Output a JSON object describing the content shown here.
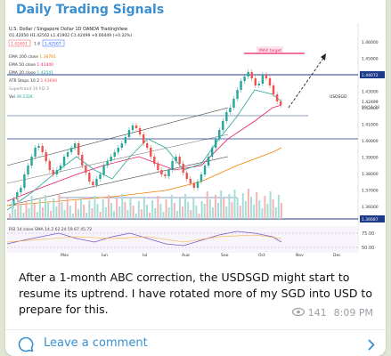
{
  "channel": {
    "title": "Daily Trading Signals"
  },
  "chart": {
    "symbol_line": "U.S. Dollar / Singapore Dollar  1D  OANDA  TradingView",
    "ohlc_line": "O1.42050 H1.42502 L1.41902 C1.42499 +0.00449 (+0.32%)",
    "bid": "1.42491",
    "spread": "1.6",
    "ask": "1.42507",
    "indicators": [
      {
        "label": "EMA 200 close",
        "value": "1.36781"
      },
      {
        "label": "EMA 50 close",
        "value": "1.41440"
      },
      {
        "label": "EMA 20 close",
        "value": "1.42541"
      },
      {
        "label": "ATR Stops 10 2",
        "value": "1.43690"
      },
      {
        "label": "Supertrend 10 hl2 3",
        "value": ""
      },
      {
        "label": "Vol",
        "value": "39.232K"
      }
    ],
    "max_target_label": "MAX target",
    "price_label_usdsgd": "USDSGD",
    "current_price": "1.42499",
    "countdown": "08:51:23",
    "level_badge_top": "1.44072",
    "level_badge_bottom": "1.36687",
    "y_ticks": [
      "1.46000",
      "1.45000",
      "1.44000",
      "1.43000",
      "1.42000",
      "1.41000",
      "1.40000",
      "1.39000",
      "1.38000",
      "1.37000",
      "1.36000"
    ],
    "x_ticks": [
      "Jul",
      "May",
      "Jun",
      "Jul",
      "Aug",
      "Sep",
      "Oct",
      "Nov",
      "Dec"
    ],
    "rsi_line": "RSI  14 close SMA 14.2  62.24  59.67  45.72",
    "rsi_ticks": [
      "75.00",
      "50.00"
    ],
    "colors": {
      "up": "#26a69a",
      "down": "#ef5350",
      "level": "#1e3a8a",
      "ema200": "#f57c00",
      "ema50": "#e91e63",
      "ema20": "#26a69a",
      "target": "#e91e63"
    }
  },
  "message": {
    "text": "After a 1-month ABC correction, the USDSGD might start to resume its uptrend. I have rotated more of my SGD into USD to prepare for this.",
    "views": "141",
    "time": "8:09 PM"
  },
  "comments": {
    "label": "Leave a comment"
  }
}
